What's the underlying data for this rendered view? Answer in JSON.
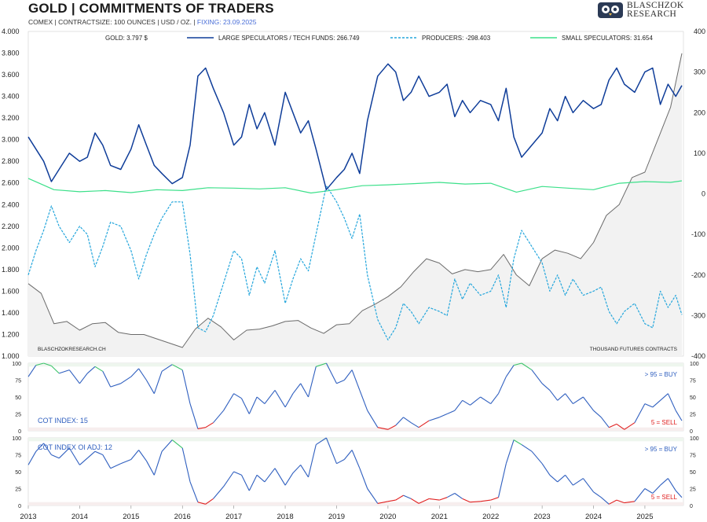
{
  "header": {
    "title": "GOLD | COMMITMENTS OF TRADERS",
    "subtitle": "COMEX | CONTRACTSIZE: 100 OUNCES | USD / OZ. | ",
    "fixing": "FIXING: 23.09.2025",
    "logo_line1": "BLASCHZOK",
    "logo_line2": "RESEARCH"
  },
  "colors": {
    "gold": "#6b6b6b",
    "large_specs": "#0f3d99",
    "producers": "#24a6dc",
    "small_specs": "#3ce08a",
    "buy": "#3cc46a",
    "sell": "#e02020",
    "index_line": "#2f5fbf"
  },
  "chart_data": [
    {
      "type": "line",
      "title": "GOLD | COMMITMENTS OF TRADERS",
      "x_range": [
        2013.0,
        2025.75
      ],
      "left_axis": {
        "label": "",
        "ylim": [
          1000,
          4000
        ],
        "ticks": [
          "1.000",
          "1.200",
          "1.400",
          "1.600",
          "1.800",
          "2.000",
          "2.200",
          "2.400",
          "2.600",
          "2.800",
          "3.000",
          "3.200",
          "3.400",
          "3.600",
          "3.800",
          "4.000"
        ]
      },
      "right_axis": {
        "label": "",
        "ylim": [
          -400,
          400
        ],
        "ticks": [
          "-400",
          "-300",
          "-200",
          "-100",
          "0",
          "100",
          "200",
          "300",
          "400"
        ]
      },
      "legend": [
        "GOLD: 3.797 $",
        "LARGE SPECULATORS / TECH FUNDS: 266.749",
        "PRODUCERS: -298.403",
        "SMALL SPECULATORS: 31.654"
      ],
      "legend_position": "top",
      "source_note": "BLASCHZOKRESEARCH.CH",
      "unit_note": "THOUSAND  FUTURES CONTRACTS",
      "series": [
        {
          "name": "GOLD",
          "axis": "left",
          "style": "solid-grey",
          "x": [
            2013.0,
            2013.25,
            2013.5,
            2013.75,
            2014.0,
            2014.25,
            2014.5,
            2014.75,
            2015.0,
            2015.25,
            2015.5,
            2015.75,
            2016.0,
            2016.25,
            2016.5,
            2016.75,
            2017.0,
            2017.25,
            2017.5,
            2017.75,
            2018.0,
            2018.25,
            2018.5,
            2018.75,
            2019.0,
            2019.25,
            2019.5,
            2019.75,
            2020.0,
            2020.25,
            2020.5,
            2020.75,
            2021.0,
            2021.25,
            2021.5,
            2021.75,
            2022.0,
            2022.25,
            2022.5,
            2022.75,
            2023.0,
            2023.25,
            2023.5,
            2023.75,
            2024.0,
            2024.25,
            2024.5,
            2024.75,
            2025.0,
            2025.25,
            2025.5,
            2025.72
          ],
          "values": [
            1670,
            1580,
            1300,
            1320,
            1240,
            1300,
            1310,
            1220,
            1200,
            1200,
            1160,
            1120,
            1080,
            1250,
            1350,
            1270,
            1150,
            1240,
            1250,
            1280,
            1320,
            1330,
            1260,
            1210,
            1290,
            1300,
            1420,
            1480,
            1550,
            1640,
            1780,
            1900,
            1860,
            1760,
            1800,
            1780,
            1800,
            1940,
            1750,
            1650,
            1900,
            1980,
            1950,
            1900,
            2050,
            2300,
            2400,
            2650,
            2700,
            3000,
            3300,
            3797
          ]
        },
        {
          "name": "LARGE SPECULATORS / TECH FUNDS",
          "axis": "right",
          "style": "solid-navy",
          "x": [
            2013.0,
            2013.15,
            2013.3,
            2013.45,
            2013.6,
            2013.8,
            2014.0,
            2014.15,
            2014.3,
            2014.45,
            2014.6,
            2014.8,
            2015.0,
            2015.15,
            2015.3,
            2015.45,
            2015.6,
            2015.8,
            2016.0,
            2016.15,
            2016.3,
            2016.45,
            2016.6,
            2016.8,
            2017.0,
            2017.15,
            2017.3,
            2017.45,
            2017.6,
            2017.8,
            2018.0,
            2018.15,
            2018.3,
            2018.45,
            2018.6,
            2018.8,
            2019.0,
            2019.15,
            2019.3,
            2019.45,
            2019.6,
            2019.8,
            2020.0,
            2020.15,
            2020.3,
            2020.45,
            2020.6,
            2020.8,
            2021.0,
            2021.15,
            2021.3,
            2021.45,
            2021.6,
            2021.8,
            2022.0,
            2022.15,
            2022.3,
            2022.45,
            2022.6,
            2022.8,
            2023.0,
            2023.15,
            2023.3,
            2023.45,
            2023.6,
            2023.8,
            2024.0,
            2024.15,
            2024.3,
            2024.45,
            2024.6,
            2024.8,
            2025.0,
            2025.15,
            2025.3,
            2025.45,
            2025.6,
            2025.72
          ],
          "values": [
            140,
            110,
            80,
            30,
            60,
            100,
            80,
            90,
            150,
            120,
            70,
            60,
            110,
            170,
            120,
            70,
            50,
            25,
            40,
            120,
            290,
            310,
            260,
            200,
            120,
            140,
            220,
            160,
            200,
            120,
            250,
            200,
            150,
            180,
            110,
            10,
            40,
            60,
            100,
            50,
            180,
            290,
            320,
            300,
            230,
            250,
            290,
            240,
            250,
            270,
            190,
            230,
            200,
            230,
            220,
            180,
            260,
            140,
            90,
            120,
            150,
            210,
            180,
            240,
            200,
            230,
            210,
            220,
            280,
            310,
            270,
            250,
            300,
            310,
            220,
            270,
            240,
            267
          ]
        },
        {
          "name": "PRODUCERS",
          "axis": "right",
          "style": "dashed-cyan",
          "x": [
            2013.0,
            2013.15,
            2013.3,
            2013.45,
            2013.6,
            2013.8,
            2014.0,
            2014.15,
            2014.3,
            2014.45,
            2014.6,
            2014.8,
            2015.0,
            2015.15,
            2015.3,
            2015.45,
            2015.6,
            2015.8,
            2016.0,
            2016.15,
            2016.3,
            2016.45,
            2016.6,
            2016.8,
            2017.0,
            2017.15,
            2017.3,
            2017.45,
            2017.6,
            2017.8,
            2018.0,
            2018.15,
            2018.3,
            2018.45,
            2018.6,
            2018.8,
            2019.0,
            2019.15,
            2019.3,
            2019.45,
            2019.6,
            2019.8,
            2020.0,
            2020.15,
            2020.3,
            2020.45,
            2020.6,
            2020.8,
            2021.0,
            2021.15,
            2021.3,
            2021.45,
            2021.6,
            2021.8,
            2022.0,
            2022.15,
            2022.3,
            2022.45,
            2022.6,
            2022.8,
            2023.0,
            2023.15,
            2023.3,
            2023.45,
            2023.6,
            2023.8,
            2024.0,
            2024.15,
            2024.3,
            2024.45,
            2024.6,
            2024.8,
            2025.0,
            2025.15,
            2025.3,
            2025.45,
            2025.6,
            2025.72
          ],
          "values": [
            -200,
            -140,
            -90,
            -30,
            -80,
            -120,
            -80,
            -100,
            -180,
            -130,
            -70,
            -80,
            -140,
            -210,
            -150,
            -100,
            -60,
            -20,
            -20,
            -150,
            -330,
            -340,
            -300,
            -220,
            -140,
            -160,
            -250,
            -180,
            -220,
            -140,
            -270,
            -210,
            -160,
            -190,
            -100,
            20,
            -20,
            -60,
            -110,
            -50,
            -200,
            -310,
            -360,
            -330,
            -270,
            -290,
            -320,
            -280,
            -290,
            -300,
            -210,
            -260,
            -220,
            -250,
            -240,
            -200,
            -280,
            -160,
            -90,
            -130,
            -170,
            -240,
            -200,
            -250,
            -210,
            -250,
            -240,
            -230,
            -290,
            -320,
            -290,
            -270,
            -320,
            -330,
            -240,
            -280,
            -250,
            -298
          ]
        },
        {
          "name": "SMALL SPECULATORS",
          "axis": "right",
          "style": "solid-green",
          "x": [
            2013.0,
            2013.5,
            2014.0,
            2014.5,
            2015.0,
            2015.5,
            2016.0,
            2016.5,
            2017.0,
            2017.5,
            2018.0,
            2018.5,
            2019.0,
            2019.5,
            2020.0,
            2020.5,
            2021.0,
            2021.5,
            2022.0,
            2022.5,
            2023.0,
            2023.5,
            2024.0,
            2024.5,
            2025.0,
            2025.5,
            2025.72
          ],
          "values": [
            38,
            10,
            5,
            8,
            3,
            10,
            8,
            15,
            14,
            12,
            15,
            2,
            10,
            20,
            22,
            25,
            28,
            24,
            26,
            4,
            18,
            14,
            10,
            26,
            30,
            28,
            32
          ]
        }
      ]
    },
    {
      "type": "line",
      "label": "COT INDEX: 15",
      "buy_note": "> 95 = BUY",
      "sell_note": "5 = SELL",
      "ylim": [
        0,
        100
      ],
      "ticks": [
        "0",
        "25",
        "50",
        "75",
        "100"
      ],
      "buy_threshold": 95,
      "sell_threshold": 5,
      "x": [
        2013.0,
        2013.15,
        2013.3,
        2013.45,
        2013.6,
        2013.8,
        2014.0,
        2014.15,
        2014.3,
        2014.45,
        2014.6,
        2014.8,
        2015.0,
        2015.15,
        2015.3,
        2015.45,
        2015.6,
        2015.8,
        2016.0,
        2016.15,
        2016.3,
        2016.45,
        2016.6,
        2016.8,
        2017.0,
        2017.15,
        2017.3,
        2017.45,
        2017.6,
        2017.8,
        2018.0,
        2018.15,
        2018.3,
        2018.45,
        2018.6,
        2018.8,
        2019.0,
        2019.15,
        2019.3,
        2019.45,
        2019.6,
        2019.8,
        2020.0,
        2020.15,
        2020.3,
        2020.45,
        2020.6,
        2020.8,
        2021.0,
        2021.15,
        2021.3,
        2021.45,
        2021.6,
        2021.8,
        2022.0,
        2022.15,
        2022.3,
        2022.45,
        2022.6,
        2022.8,
        2023.0,
        2023.15,
        2023.3,
        2023.45,
        2023.6,
        2023.8,
        2024.0,
        2024.15,
        2024.3,
        2024.45,
        2024.6,
        2024.8,
        2025.0,
        2025.15,
        2025.3,
        2025.45,
        2025.6,
        2025.72
      ],
      "values": [
        80,
        97,
        100,
        96,
        85,
        90,
        70,
        85,
        95,
        88,
        65,
        70,
        80,
        92,
        75,
        55,
        88,
        98,
        90,
        40,
        3,
        5,
        12,
        30,
        55,
        48,
        25,
        50,
        40,
        60,
        35,
        55,
        70,
        50,
        95,
        100,
        70,
        75,
        90,
        60,
        30,
        5,
        2,
        8,
        20,
        12,
        5,
        15,
        20,
        25,
        30,
        45,
        38,
        50,
        40,
        55,
        80,
        97,
        100,
        90,
        70,
        60,
        45,
        55,
        40,
        50,
        30,
        20,
        5,
        10,
        2,
        12,
        40,
        35,
        45,
        55,
        30,
        15
      ]
    },
    {
      "type": "line",
      "label": "COT INDEX OI ADJ: 12",
      "buy_note": "> 95 = BUY",
      "sell_note": "5 = SELL",
      "ylim": [
        0,
        100
      ],
      "ticks": [
        "0",
        "25",
        "50",
        "75",
        "100"
      ],
      "buy_threshold": 95,
      "sell_threshold": 5,
      "x_ticks": [
        "2013",
        "2014",
        "2015",
        "2016",
        "2017",
        "2018",
        "2019",
        "2020",
        "2021",
        "2022",
        "2023",
        "2024",
        "2025"
      ],
      "x": [
        2013.0,
        2013.15,
        2013.3,
        2013.45,
        2013.6,
        2013.8,
        2014.0,
        2014.15,
        2014.3,
        2014.45,
        2014.6,
        2014.8,
        2015.0,
        2015.15,
        2015.3,
        2015.45,
        2015.6,
        2015.8,
        2016.0,
        2016.15,
        2016.3,
        2016.45,
        2016.6,
        2016.8,
        2017.0,
        2017.15,
        2017.3,
        2017.45,
        2017.6,
        2017.8,
        2018.0,
        2018.15,
        2018.3,
        2018.45,
        2018.6,
        2018.8,
        2019.0,
        2019.15,
        2019.3,
        2019.45,
        2019.6,
        2019.8,
        2020.0,
        2020.15,
        2020.3,
        2020.45,
        2020.6,
        2020.8,
        2021.0,
        2021.15,
        2021.3,
        2021.45,
        2021.6,
        2021.8,
        2022.0,
        2022.15,
        2022.3,
        2022.45,
        2022.6,
        2022.8,
        2023.0,
        2023.15,
        2023.3,
        2023.45,
        2023.6,
        2023.8,
        2024.0,
        2024.15,
        2024.3,
        2024.45,
        2024.6,
        2024.8,
        2025.0,
        2025.15,
        2025.3,
        2025.45,
        2025.6,
        2025.72
      ],
      "values": [
        60,
        80,
        92,
        75,
        70,
        85,
        60,
        70,
        80,
        75,
        55,
        62,
        68,
        82,
        66,
        45,
        80,
        97,
        85,
        35,
        5,
        2,
        10,
        28,
        50,
        45,
        22,
        45,
        35,
        55,
        30,
        48,
        60,
        42,
        90,
        100,
        62,
        68,
        82,
        55,
        25,
        3,
        6,
        8,
        15,
        10,
        3,
        10,
        8,
        12,
        18,
        10,
        5,
        6,
        8,
        12,
        62,
        97,
        90,
        80,
        62,
        45,
        35,
        45,
        30,
        40,
        20,
        12,
        2,
        8,
        4,
        6,
        25,
        18,
        30,
        40,
        22,
        12
      ]
    }
  ]
}
